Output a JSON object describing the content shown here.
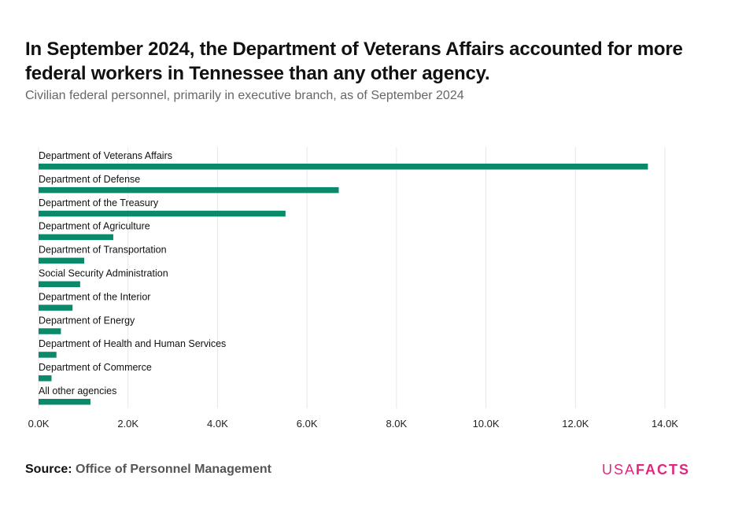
{
  "header": {
    "title": "In September 2024, the Department of Veterans Affairs accounted for more federal workers in Tennessee than any other agency.",
    "subtitle": "Civilian federal personnel, primarily in executive branch, as of September 2024"
  },
  "footer": {
    "source_label": "Source:",
    "source_text": "Office of Personnel Management",
    "logo_part1": "USA",
    "logo_part2": "FACTS"
  },
  "colors": {
    "bar": "#0a8a6a",
    "grid": "#e6e6e6",
    "brand": "#e0267d"
  },
  "chart_data": {
    "type": "bar",
    "orientation": "horizontal",
    "categories": [
      "Department of Veterans Affairs",
      "Department of Defense",
      "Department of the Treasury",
      "Department of Agriculture",
      "Department of Transportation",
      "Social Security Administration",
      "Department of the Interior",
      "Department of Energy",
      "Department of Health and Human Services",
      "Department of Commerce",
      "All other agencies"
    ],
    "values": [
      13620,
      6710,
      5520,
      1670,
      1020,
      930,
      760,
      500,
      400,
      290,
      1160
    ],
    "xlim": [
      0,
      14000
    ],
    "xticks": [
      0,
      2000,
      4000,
      6000,
      8000,
      10000,
      12000,
      14000
    ],
    "xtick_labels": [
      "0.0K",
      "2.0K",
      "4.0K",
      "6.0K",
      "8.0K",
      "10.0K",
      "12.0K",
      "14.0K"
    ],
    "grid": true,
    "legend": "none"
  }
}
